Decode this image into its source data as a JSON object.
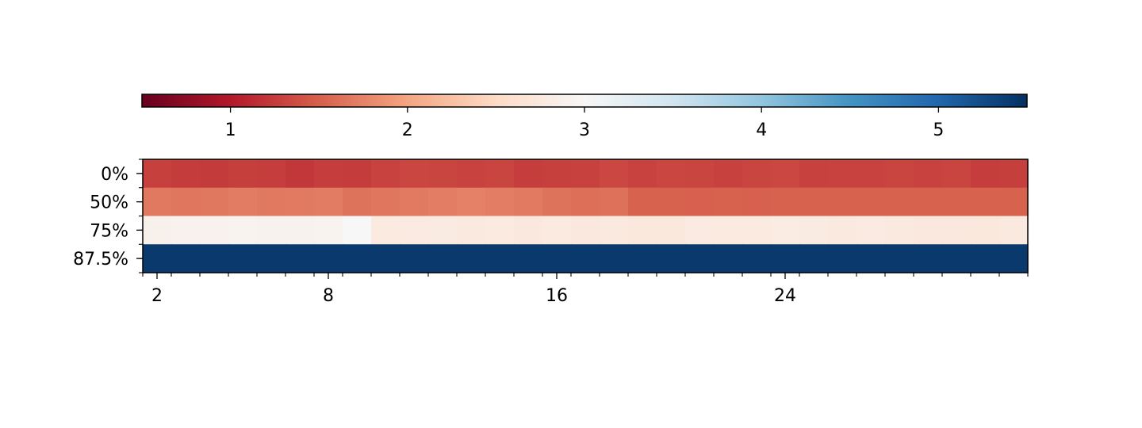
{
  "chart_data": {
    "type": "heatmap",
    "title": "",
    "xlabel": "",
    "ylabel": "",
    "rows": [
      "0%",
      "50%",
      "75%",
      "87.5%"
    ],
    "columns_count": 31,
    "x_tick_labels": [
      {
        "value": 2,
        "label": "2"
      },
      {
        "value": 8,
        "label": "8"
      },
      {
        "value": 16,
        "label": "16"
      },
      {
        "value": 24,
        "label": "24"
      }
    ],
    "colorbar": {
      "orientation": "horizontal",
      "placement": "top",
      "colormap": "RdBu",
      "range": [
        0.5,
        5.5
      ],
      "ticks": [
        1,
        2,
        3,
        4,
        5
      ],
      "tick_labels": [
        "1",
        "2",
        "3",
        "4",
        "5"
      ]
    },
    "values": [
      [
        1.28,
        1.25,
        1.24,
        1.27,
        1.26,
        1.22,
        1.26,
        1.25,
        1.3,
        1.32,
        1.31,
        1.3,
        1.31,
        1.26,
        1.28,
        1.29,
        1.33,
        1.3,
        1.32,
        1.31,
        1.29,
        1.31,
        1.33,
        1.29,
        1.3,
        1.3,
        1.31,
        1.3,
        1.31,
        1.26,
        1.27
      ],
      [
        1.68,
        1.66,
        1.67,
        1.7,
        1.68,
        1.69,
        1.7,
        1.64,
        1.66,
        1.69,
        1.72,
        1.74,
        1.72,
        1.69,
        1.64,
        1.61,
        1.62,
        1.52,
        1.52,
        1.51,
        1.52,
        1.51,
        1.52,
        1.52,
        1.52,
        1.52,
        1.52,
        1.52,
        1.52,
        1.52,
        1.52
      ],
      [
        2.88,
        2.9,
        2.9,
        2.92,
        2.91,
        2.91,
        2.92,
        3.0,
        2.76,
        2.77,
        2.78,
        2.75,
        2.76,
        2.74,
        2.76,
        2.74,
        2.75,
        2.73,
        2.73,
        2.77,
        2.76,
        2.76,
        2.79,
        2.78,
        2.75,
        2.77,
        2.75,
        2.74,
        2.74,
        2.73,
        2.75
      ],
      [
        5.42,
        5.42,
        5.42,
        5.42,
        5.42,
        5.42,
        5.42,
        5.42,
        5.42,
        5.42,
        5.42,
        5.42,
        5.42,
        5.42,
        5.42,
        5.42,
        5.42,
        5.42,
        5.42,
        5.42,
        5.42,
        5.42,
        5.42,
        5.42,
        5.42,
        5.42,
        5.42,
        5.42,
        5.42,
        5.42,
        5.42
      ]
    ]
  }
}
